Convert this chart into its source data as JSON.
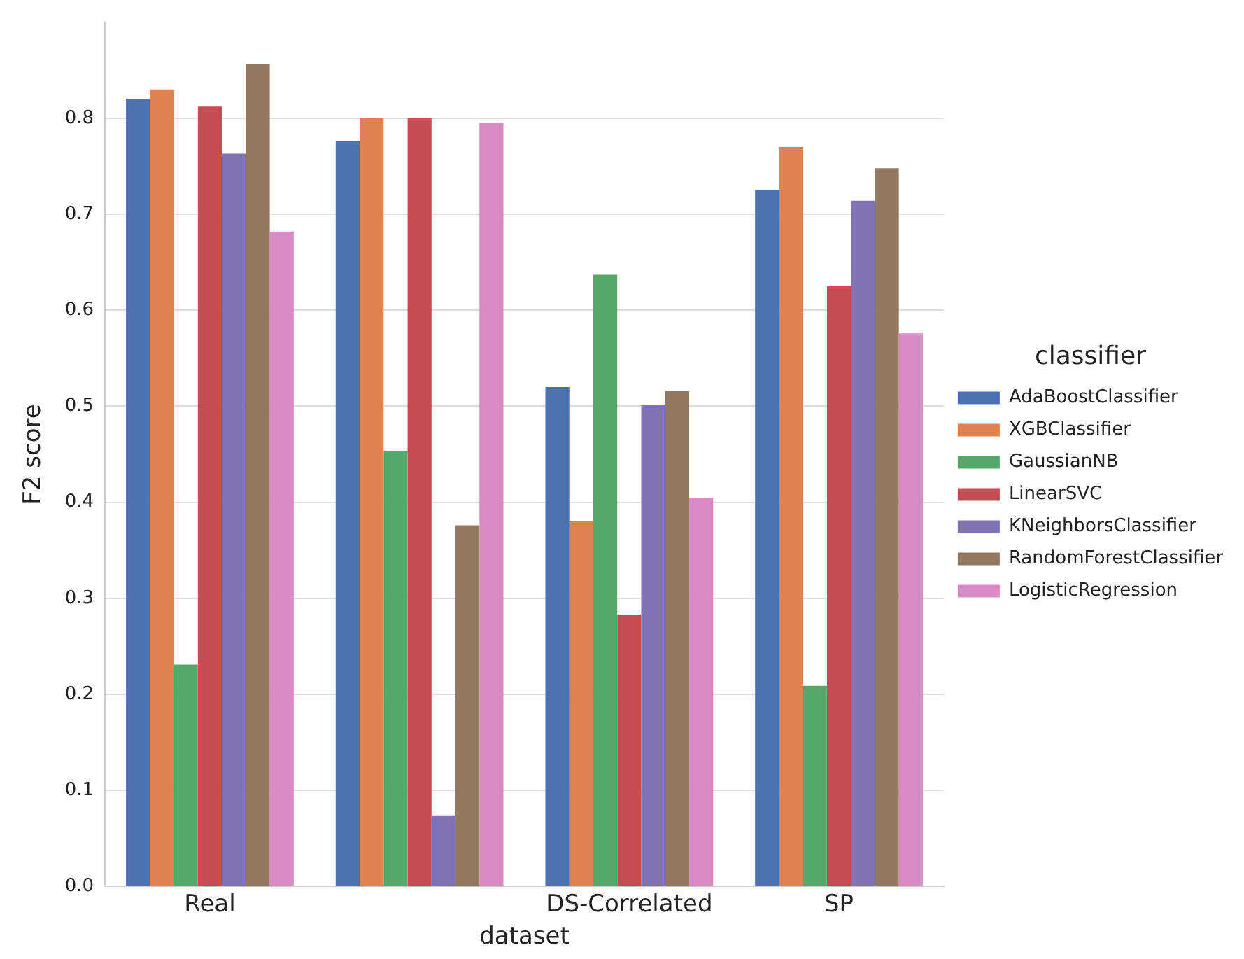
{
  "chart_data": {
    "type": "bar",
    "xlabel": "dataset",
    "ylabel": "F2 score",
    "legend_title": "classifier",
    "categories": [
      "Real",
      null,
      "DS-Correlated",
      "SP"
    ],
    "series": [
      {
        "name": "AdaBoostClassifier",
        "color": "#4c72b0",
        "values": [
          0.82,
          0.776,
          0.52,
          0.725
        ]
      },
      {
        "name": "XGBClassifier",
        "color": "#dd8452",
        "values": [
          0.83,
          0.8,
          0.38,
          0.77
        ]
      },
      {
        "name": "GaussianNB",
        "color": "#55a868",
        "values": [
          0.231,
          0.453,
          0.637,
          0.209
        ]
      },
      {
        "name": "LinearSVC",
        "color": "#c44e52",
        "values": [
          0.812,
          0.8,
          0.283,
          0.625
        ]
      },
      {
        "name": "KNeighborsClassifier",
        "color": "#8172b3",
        "values": [
          0.763,
          0.074,
          0.501,
          0.714
        ]
      },
      {
        "name": "RandomForestClassifier",
        "color": "#937860",
        "values": [
          0.856,
          0.376,
          0.516,
          0.748
        ]
      },
      {
        "name": "LogisticRegression",
        "color": "#da8bc3",
        "values": [
          0.682,
          0.795,
          0.404,
          0.576
        ]
      }
    ],
    "ylim": [
      0,
      0.9
    ],
    "yticks": [
      {
        "value": 0,
        "label": "0.0"
      },
      0.1,
      0.2,
      0.3,
      0.4,
      0.5,
      0.6,
      0.7,
      0.8
    ],
    "grid": "y",
    "legend": "right"
  }
}
